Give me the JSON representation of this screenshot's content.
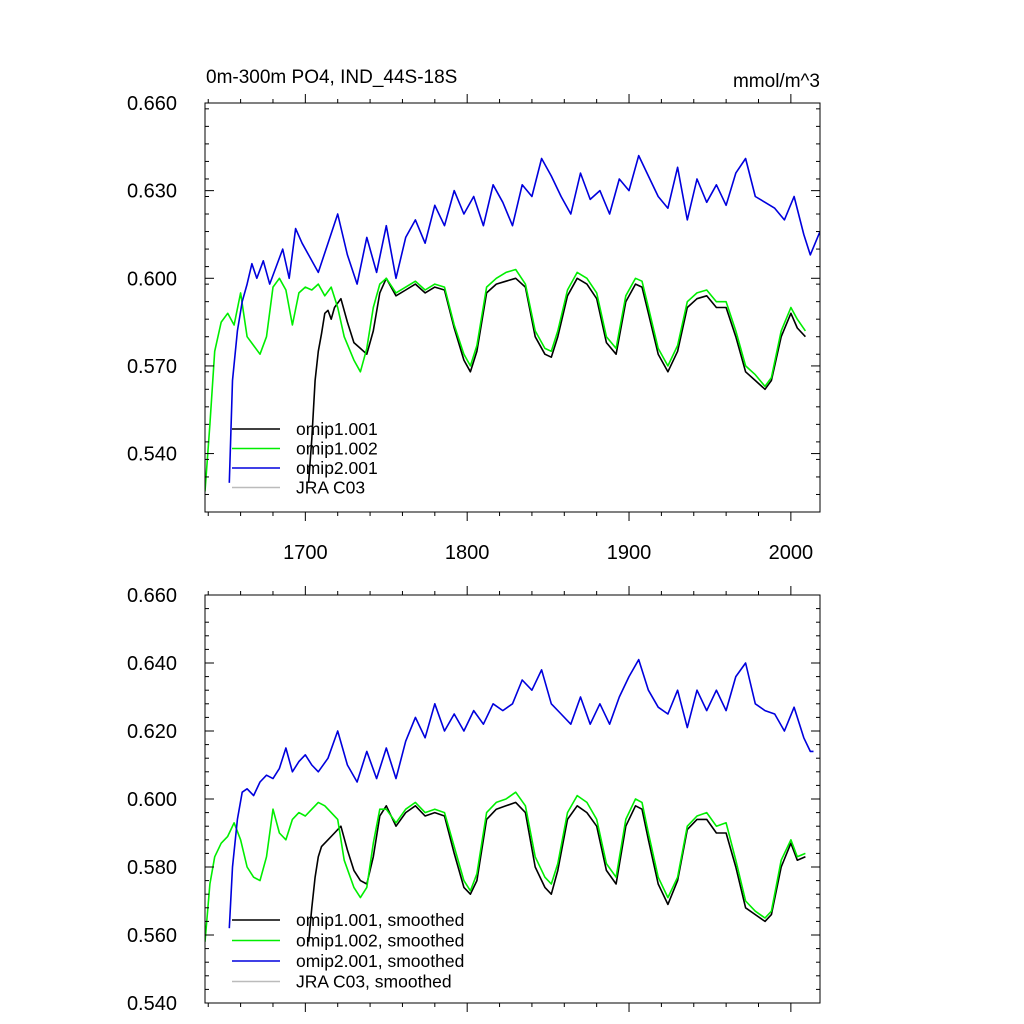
{
  "colors": {
    "omip1_001": "#000000",
    "omip1_002": "#00ee00",
    "omip2_001": "#0000dd",
    "jra": "#bbbbbb",
    "frame": "#000000"
  },
  "chart_data": [
    {
      "type": "line",
      "title": "0m-300m PO4, IND_44S-18S",
      "units": "mmol/m^3",
      "xlim": [
        1638,
        2018
      ],
      "ylim": [
        0.52,
        0.66
      ],
      "x_ticks": [
        1700,
        1800,
        1900,
        2000
      ],
      "x_tick_labels": [
        "1700",
        "1800",
        "1900",
        "2000"
      ],
      "y_ticks": [
        0.54,
        0.57,
        0.6,
        0.63,
        0.66
      ],
      "y_tick_labels": [
        "0.540",
        "0.570",
        "0.600",
        "0.630",
        "0.660"
      ],
      "grid": false,
      "legend_position": "bottom-left",
      "series": [
        {
          "name": "omip1.001",
          "color_key": "omip1_001",
          "x": [
            1702,
            1704,
            1706,
            1708,
            1710,
            1712,
            1714,
            1716,
            1718,
            1722,
            1726,
            1730,
            1734,
            1738,
            1742,
            1746,
            1750,
            1756,
            1762,
            1768,
            1774,
            1780,
            1786,
            1792,
            1798,
            1802,
            1806,
            1812,
            1818,
            1824,
            1830,
            1836,
            1842,
            1848,
            1852,
            1856,
            1862,
            1868,
            1874,
            1880,
            1886,
            1892,
            1898,
            1904,
            1908,
            1912,
            1918,
            1924,
            1930,
            1936,
            1942,
            1948,
            1954,
            1960,
            1966,
            1972,
            1978,
            1984,
            1988,
            1994,
            2000,
            2004,
            2009
          ],
          "y": [
            0.53,
            0.545,
            0.565,
            0.575,
            0.581,
            0.588,
            0.589,
            0.586,
            0.59,
            0.593,
            0.585,
            0.578,
            0.576,
            0.574,
            0.582,
            0.595,
            0.6,
            0.594,
            0.596,
            0.598,
            0.595,
            0.597,
            0.596,
            0.583,
            0.572,
            0.568,
            0.575,
            0.595,
            0.598,
            0.599,
            0.6,
            0.597,
            0.58,
            0.574,
            0.573,
            0.58,
            0.594,
            0.6,
            0.598,
            0.593,
            0.578,
            0.574,
            0.592,
            0.598,
            0.597,
            0.588,
            0.574,
            0.568,
            0.575,
            0.59,
            0.593,
            0.594,
            0.59,
            0.59,
            0.58,
            0.568,
            0.565,
            0.562,
            0.565,
            0.58,
            0.588,
            0.583,
            0.58
          ]
        },
        {
          "name": "omip1.002",
          "color_key": "omip1_002",
          "x": [
            1638,
            1641,
            1644,
            1648,
            1652,
            1656,
            1660,
            1664,
            1668,
            1672,
            1676,
            1680,
            1684,
            1688,
            1692,
            1696,
            1700,
            1704,
            1708,
            1712,
            1716,
            1720,
            1724,
            1730,
            1734,
            1738,
            1742,
            1746,
            1750,
            1756,
            1762,
            1768,
            1774,
            1780,
            1786,
            1792,
            1798,
            1802,
            1806,
            1812,
            1818,
            1824,
            1830,
            1836,
            1842,
            1848,
            1852,
            1856,
            1862,
            1868,
            1874,
            1880,
            1886,
            1892,
            1898,
            1904,
            1908,
            1912,
            1918,
            1924,
            1930,
            1936,
            1942,
            1948,
            1954,
            1960,
            1966,
            1972,
            1978,
            1984,
            1988,
            1994,
            2000,
            2004,
            2009
          ],
          "y": [
            0.527,
            0.55,
            0.575,
            0.585,
            0.588,
            0.584,
            0.595,
            0.58,
            0.577,
            0.574,
            0.58,
            0.597,
            0.6,
            0.596,
            0.584,
            0.595,
            0.597,
            0.596,
            0.598,
            0.594,
            0.597,
            0.59,
            0.58,
            0.572,
            0.568,
            0.576,
            0.59,
            0.598,
            0.6,
            0.595,
            0.597,
            0.599,
            0.596,
            0.598,
            0.597,
            0.584,
            0.574,
            0.57,
            0.577,
            0.597,
            0.6,
            0.602,
            0.603,
            0.598,
            0.582,
            0.576,
            0.575,
            0.582,
            0.596,
            0.602,
            0.6,
            0.595,
            0.58,
            0.576,
            0.594,
            0.6,
            0.599,
            0.59,
            0.576,
            0.57,
            0.577,
            0.592,
            0.595,
            0.596,
            0.592,
            0.592,
            0.582,
            0.57,
            0.567,
            0.563,
            0.566,
            0.582,
            0.59,
            0.586,
            0.582
          ]
        },
        {
          "name": "omip2.001",
          "color_key": "omip2_001",
          "x": [
            1653,
            1655,
            1658,
            1661,
            1664,
            1667,
            1670,
            1674,
            1678,
            1682,
            1686,
            1690,
            1694,
            1698,
            1702,
            1708,
            1714,
            1720,
            1726,
            1732,
            1738,
            1744,
            1750,
            1756,
            1762,
            1768,
            1774,
            1780,
            1786,
            1792,
            1798,
            1804,
            1810,
            1816,
            1822,
            1828,
            1834,
            1840,
            1846,
            1852,
            1858,
            1864,
            1870,
            1876,
            1882,
            1888,
            1894,
            1900,
            1906,
            1912,
            1918,
            1924,
            1930,
            1936,
            1942,
            1948,
            1954,
            1960,
            1966,
            1972,
            1978,
            1984,
            1990,
            1996,
            2002,
            2008,
            2012,
            2018
          ],
          "y": [
            0.53,
            0.565,
            0.582,
            0.592,
            0.598,
            0.605,
            0.6,
            0.606,
            0.598,
            0.604,
            0.61,
            0.6,
            0.617,
            0.612,
            0.608,
            0.602,
            0.612,
            0.622,
            0.608,
            0.598,
            0.614,
            0.602,
            0.618,
            0.6,
            0.614,
            0.62,
            0.612,
            0.625,
            0.618,
            0.63,
            0.622,
            0.628,
            0.618,
            0.632,
            0.626,
            0.618,
            0.632,
            0.628,
            0.641,
            0.635,
            0.628,
            0.622,
            0.636,
            0.627,
            0.63,
            0.622,
            0.634,
            0.63,
            0.642,
            0.635,
            0.628,
            0.624,
            0.638,
            0.62,
            0.634,
            0.626,
            0.632,
            0.625,
            0.636,
            0.641,
            0.628,
            0.626,
            0.624,
            0.62,
            0.628,
            0.615,
            0.608,
            0.616
          ]
        },
        {
          "name": "JRA C03",
          "color_key": "jra",
          "x": [],
          "y": []
        }
      ]
    },
    {
      "type": "line",
      "title": "",
      "units": "",
      "xlim": [
        1638,
        2018
      ],
      "ylim": [
        0.54,
        0.66
      ],
      "x_ticks": [
        1700,
        1800,
        1900,
        2000
      ],
      "x_tick_labels": [
        "",
        "",
        "",
        ""
      ],
      "y_ticks": [
        0.54,
        0.56,
        0.58,
        0.6,
        0.62,
        0.64,
        0.66
      ],
      "y_tick_labels": [
        "0.540",
        "0.560",
        "0.580",
        "0.600",
        "0.620",
        "0.640",
        "0.660"
      ],
      "grid": false,
      "legend_position": "bottom-left",
      "series": [
        {
          "name": "omip1.001, smoothed",
          "color_key": "omip1_001",
          "x": [
            1702,
            1704,
            1706,
            1708,
            1710,
            1714,
            1718,
            1722,
            1726,
            1730,
            1734,
            1738,
            1742,
            1746,
            1750,
            1756,
            1762,
            1768,
            1774,
            1780,
            1786,
            1792,
            1798,
            1802,
            1806,
            1812,
            1818,
            1824,
            1830,
            1836,
            1842,
            1848,
            1852,
            1856,
            1862,
            1868,
            1874,
            1880,
            1886,
            1892,
            1898,
            1904,
            1908,
            1912,
            1918,
            1924,
            1930,
            1936,
            1942,
            1948,
            1954,
            1960,
            1966,
            1972,
            1978,
            1984,
            1988,
            1994,
            2000,
            2004,
            2009
          ],
          "y": [
            0.558,
            0.568,
            0.577,
            0.583,
            0.586,
            0.588,
            0.59,
            0.592,
            0.585,
            0.579,
            0.576,
            0.575,
            0.583,
            0.595,
            0.598,
            0.592,
            0.596,
            0.598,
            0.595,
            0.596,
            0.595,
            0.584,
            0.574,
            0.572,
            0.576,
            0.594,
            0.597,
            0.598,
            0.599,
            0.596,
            0.58,
            0.574,
            0.572,
            0.579,
            0.594,
            0.598,
            0.596,
            0.592,
            0.579,
            0.575,
            0.592,
            0.598,
            0.597,
            0.588,
            0.575,
            0.569,
            0.576,
            0.591,
            0.594,
            0.594,
            0.59,
            0.59,
            0.58,
            0.568,
            0.566,
            0.564,
            0.566,
            0.58,
            0.587,
            0.582,
            0.583
          ]
        },
        {
          "name": "omip1.002, smoothed",
          "color_key": "omip1_002",
          "x": [
            1638,
            1641,
            1644,
            1648,
            1652,
            1656,
            1660,
            1664,
            1668,
            1672,
            1676,
            1680,
            1684,
            1688,
            1692,
            1696,
            1700,
            1704,
            1708,
            1712,
            1716,
            1720,
            1724,
            1730,
            1734,
            1738,
            1742,
            1746,
            1750,
            1756,
            1762,
            1768,
            1774,
            1780,
            1786,
            1792,
            1798,
            1802,
            1806,
            1812,
            1818,
            1824,
            1830,
            1836,
            1842,
            1848,
            1852,
            1856,
            1862,
            1868,
            1874,
            1880,
            1886,
            1892,
            1898,
            1904,
            1908,
            1912,
            1918,
            1924,
            1930,
            1936,
            1942,
            1948,
            1954,
            1960,
            1966,
            1972,
            1978,
            1984,
            1988,
            1994,
            2000,
            2004,
            2009
          ],
          "y": [
            0.558,
            0.575,
            0.583,
            0.587,
            0.589,
            0.593,
            0.588,
            0.58,
            0.577,
            0.576,
            0.583,
            0.597,
            0.59,
            0.588,
            0.594,
            0.596,
            0.595,
            0.597,
            0.599,
            0.598,
            0.596,
            0.594,
            0.582,
            0.574,
            0.571,
            0.574,
            0.587,
            0.597,
            0.597,
            0.593,
            0.597,
            0.599,
            0.596,
            0.597,
            0.596,
            0.586,
            0.576,
            0.573,
            0.578,
            0.596,
            0.599,
            0.6,
            0.602,
            0.598,
            0.583,
            0.577,
            0.575,
            0.581,
            0.596,
            0.601,
            0.599,
            0.594,
            0.581,
            0.577,
            0.594,
            0.6,
            0.599,
            0.59,
            0.577,
            0.571,
            0.577,
            0.592,
            0.595,
            0.596,
            0.592,
            0.593,
            0.582,
            0.57,
            0.567,
            0.565,
            0.567,
            0.582,
            0.588,
            0.583,
            0.584
          ]
        },
        {
          "name": "omip2.001, smoothed",
          "color_key": "omip2_001",
          "x": [
            1653,
            1655,
            1658,
            1661,
            1664,
            1668,
            1672,
            1676,
            1680,
            1684,
            1688,
            1692,
            1696,
            1700,
            1704,
            1708,
            1714,
            1720,
            1726,
            1732,
            1738,
            1744,
            1750,
            1756,
            1762,
            1768,
            1774,
            1780,
            1786,
            1792,
            1798,
            1804,
            1810,
            1816,
            1822,
            1828,
            1834,
            1840,
            1846,
            1852,
            1858,
            1864,
            1870,
            1876,
            1882,
            1888,
            1894,
            1900,
            1906,
            1912,
            1918,
            1924,
            1930,
            1936,
            1942,
            1948,
            1954,
            1960,
            1966,
            1972,
            1978,
            1984,
            1990,
            1996,
            2002,
            2008,
            2012,
            2014
          ],
          "y": [
            0.562,
            0.58,
            0.594,
            0.602,
            0.603,
            0.601,
            0.605,
            0.607,
            0.606,
            0.609,
            0.615,
            0.608,
            0.611,
            0.613,
            0.61,
            0.608,
            0.612,
            0.62,
            0.61,
            0.605,
            0.614,
            0.606,
            0.615,
            0.606,
            0.617,
            0.624,
            0.618,
            0.628,
            0.62,
            0.625,
            0.62,
            0.626,
            0.622,
            0.628,
            0.626,
            0.628,
            0.635,
            0.632,
            0.638,
            0.628,
            0.625,
            0.622,
            0.63,
            0.622,
            0.628,
            0.622,
            0.63,
            0.636,
            0.641,
            0.632,
            0.627,
            0.625,
            0.632,
            0.621,
            0.632,
            0.626,
            0.632,
            0.626,
            0.636,
            0.64,
            0.628,
            0.626,
            0.625,
            0.62,
            0.627,
            0.618,
            0.614,
            0.614
          ]
        },
        {
          "name": "JRA C03, smoothed",
          "color_key": "jra",
          "x": [],
          "y": []
        }
      ]
    }
  ]
}
